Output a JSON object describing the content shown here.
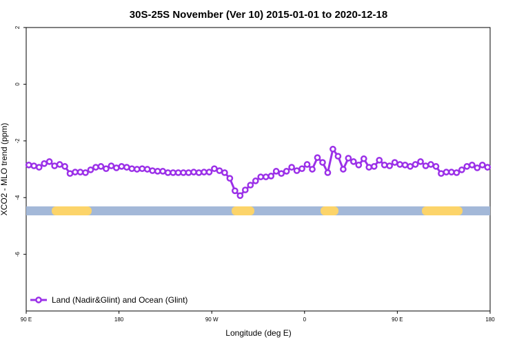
{
  "chart_data": {
    "type": "line",
    "title": "30S-25S November (Ver 10)   2015-01-01 to 2020-12-18",
    "x_label": "Longitude (deg E)",
    "y_label": "XCO2 - MLO trend (ppm)",
    "xlim": [
      90,
      540
    ],
    "xticks": [
      {
        "value": 90,
        "label": "90 E"
      },
      180,
      {
        "value": 270,
        "label": "90 W"
      },
      {
        "value": 360,
        "label": "0"
      },
      {
        "value": 450,
        "label": "90 E"
      },
      {
        "value": 540,
        "label": "180"
      }
    ],
    "ylim": [
      -8,
      2
    ],
    "yticks": [
      -6,
      -4,
      -2,
      0,
      2
    ],
    "legend": "bottom-left",
    "x": [
      92.5,
      97.5,
      102.5,
      107.5,
      112.5,
      117.5,
      122.5,
      127.5,
      132.5,
      137.5,
      142.5,
      147.5,
      152.5,
      157.5,
      162.5,
      167.5,
      172.5,
      177.5,
      182.5,
      187.5,
      192.5,
      197.5,
      202.5,
      207.5,
      212.5,
      217.5,
      222.5,
      227.5,
      232.5,
      237.5,
      242.5,
      247.5,
      252.5,
      257.5,
      262.5,
      267.5,
      272.5,
      277.5,
      282.5,
      287.5,
      292.5,
      297.5,
      302.5,
      307.5,
      312.5,
      317.5,
      322.5,
      327.5,
      332.5,
      337.5,
      342.5,
      347.5,
      352.5,
      357.5,
      362.5,
      367.5,
      372.5,
      377.5,
      382.5,
      387.5,
      392.5,
      397.5,
      402.5,
      407.5,
      412.5,
      417.5,
      422.5,
      427.5,
      432.5,
      437.5,
      442.5,
      447.5,
      452.5,
      457.5,
      462.5,
      467.5,
      472.5,
      477.5,
      482.5,
      487.5,
      492.5,
      497.5,
      502.5,
      507.5,
      512.5,
      517.5,
      522.5,
      527.5,
      532.5,
      537.5
    ],
    "series": [
      {
        "name": "Land (Nadir&Glint) and Ocean (Glint)",
        "color": "#9b30e8",
        "values": [
          -2.85,
          -2.88,
          -2.93,
          -2.8,
          -2.73,
          -2.88,
          -2.83,
          -2.9,
          -3.15,
          -3.1,
          -3.1,
          -3.12,
          -3.02,
          -2.93,
          -2.9,
          -2.98,
          -2.88,
          -2.95,
          -2.9,
          -2.93,
          -2.98,
          -3.0,
          -2.98,
          -3.0,
          -3.05,
          -3.07,
          -3.07,
          -3.12,
          -3.12,
          -3.12,
          -3.12,
          -3.12,
          -3.1,
          -3.12,
          -3.1,
          -3.1,
          -2.98,
          -3.05,
          -3.12,
          -3.32,
          -3.76,
          -3.93,
          -3.73,
          -3.56,
          -3.41,
          -3.27,
          -3.27,
          -3.24,
          -3.07,
          -3.15,
          -3.07,
          -2.93,
          -3.05,
          -2.98,
          -2.83,
          -3.0,
          -2.59,
          -2.76,
          -3.12,
          -2.29,
          -2.54,
          -3.0,
          -2.61,
          -2.73,
          -2.85,
          -2.63,
          -2.93,
          -2.9,
          -2.68,
          -2.85,
          -2.88,
          -2.76,
          -2.83,
          -2.85,
          -2.9,
          -2.83,
          -2.73,
          -2.88,
          -2.83,
          -2.9,
          -3.15,
          -3.1,
          -3.1,
          -3.12,
          -3.02,
          -2.9,
          -2.85,
          -2.95,
          -2.85,
          -2.93
        ]
      }
    ]
  }
}
